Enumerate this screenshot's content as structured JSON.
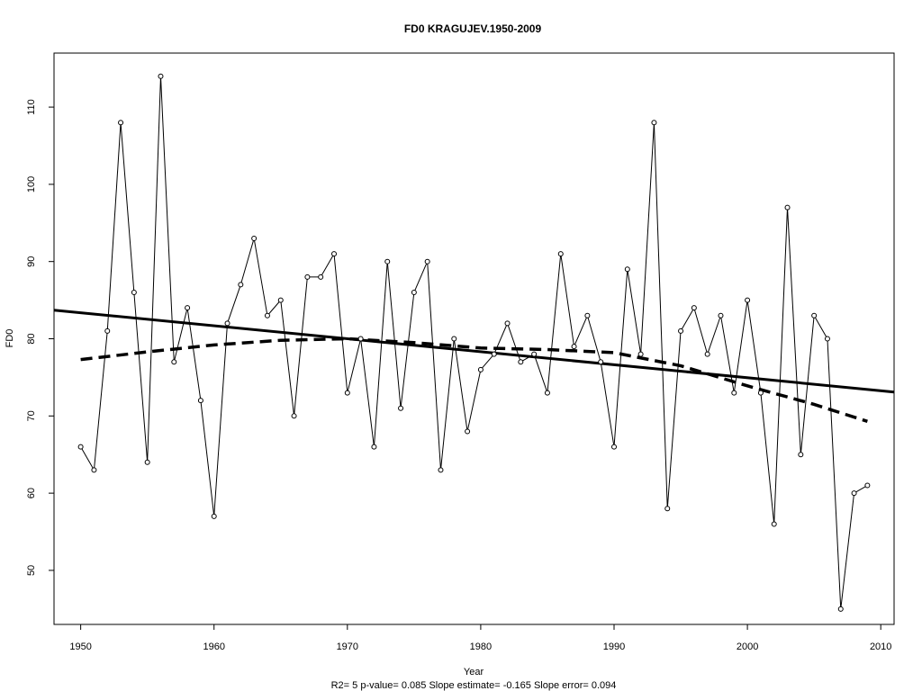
{
  "chart_data": {
    "type": "line",
    "title": "FD0    KRAGUJEV.1950-2009",
    "xlabel": "Year",
    "ylabel": "FD0",
    "subtitle": "R2= 5  p-value= 0.085  Slope estimate= -0.165  Slope error= 0.094",
    "xlim": [
      1948,
      2011
    ],
    "ylim": [
      43,
      117
    ],
    "x_ticks": [
      1950,
      1960,
      1970,
      1980,
      1990,
      2000,
      2010
    ],
    "y_ticks": [
      50,
      60,
      70,
      80,
      90,
      100,
      110
    ],
    "grid": false,
    "series": [
      {
        "kind": "observed",
        "style": "line-with-open-circles",
        "x": [
          1950,
          1951,
          1952,
          1953,
          1954,
          1955,
          1956,
          1957,
          1958,
          1959,
          1960,
          1961,
          1962,
          1963,
          1964,
          1965,
          1966,
          1967,
          1968,
          1969,
          1970,
          1971,
          1972,
          1973,
          1974,
          1975,
          1976,
          1977,
          1978,
          1979,
          1980,
          1981,
          1982,
          1983,
          1984,
          1985,
          1986,
          1987,
          1988,
          1989,
          1990,
          1991,
          1992,
          1993,
          1994,
          1995,
          1996,
          1997,
          1998,
          1999,
          2000,
          2001,
          2002,
          2003,
          2004,
          2005,
          2006,
          2007,
          2008,
          2009
        ],
        "values": [
          66,
          63,
          81,
          108,
          86,
          64,
          114,
          77,
          84,
          72,
          57,
          82,
          87,
          93,
          83,
          85,
          70,
          88,
          88,
          91,
          73,
          80,
          66,
          90,
          71,
          86,
          90,
          63,
          80,
          68,
          76,
          78,
          82,
          77,
          78,
          73,
          91,
          79,
          83,
          77,
          66,
          89,
          78,
          108,
          58,
          81,
          84,
          78,
          83,
          73,
          85,
          73,
          56,
          97,
          65,
          83,
          80,
          45,
          60,
          61
        ]
      },
      {
        "kind": "linear-trend",
        "style": "solid-thick",
        "x": [
          1948,
          2011
        ],
        "values": [
          83.7,
          73.1
        ]
      },
      {
        "kind": "smoothed",
        "style": "dashed-thick",
        "x": [
          1950,
          1955,
          1960,
          1965,
          1970,
          1975,
          1980,
          1985,
          1990,
          1995,
          2000,
          2005,
          2009
        ],
        "values": [
          77.3,
          78.3,
          79.2,
          79.8,
          80.0,
          79.5,
          78.8,
          78.6,
          78.2,
          76.5,
          73.9,
          71.5,
          69.3
        ]
      }
    ],
    "style": {
      "line_color": "#000000",
      "background": "#ffffff"
    }
  }
}
